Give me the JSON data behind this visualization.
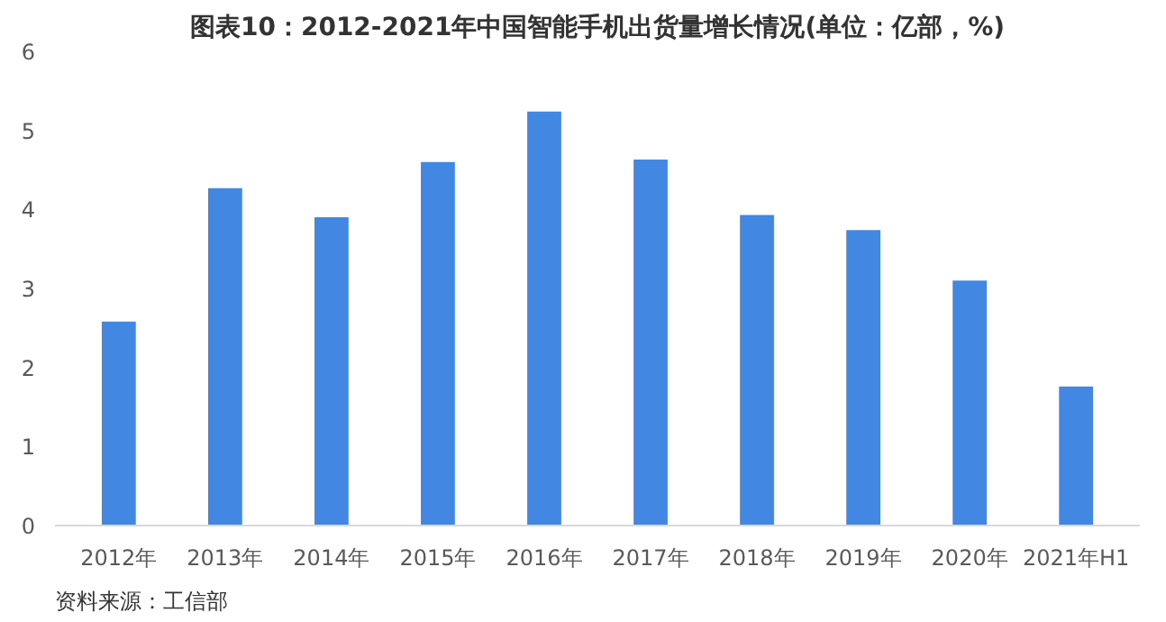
{
  "chart_data": {
    "type": "bar",
    "title": "图表10：2012-2021年中国智能手机出货量增长情况(单位：亿部，%)",
    "categories": [
      "2012年",
      "2013年",
      "2014年",
      "2015年",
      "2016年",
      "2017年",
      "2018年",
      "2019年",
      "2020年",
      "2021年H1"
    ],
    "values": [
      2.58,
      4.27,
      3.9,
      4.6,
      5.24,
      4.63,
      3.93,
      3.74,
      3.1,
      1.76
    ],
    "color": "#4287e2",
    "ylim": [
      0,
      6
    ],
    "yticks": [
      0,
      1,
      2,
      3,
      4,
      5,
      6
    ],
    "grid": false,
    "annotations": [
      "资料来源：工信部"
    ]
  }
}
